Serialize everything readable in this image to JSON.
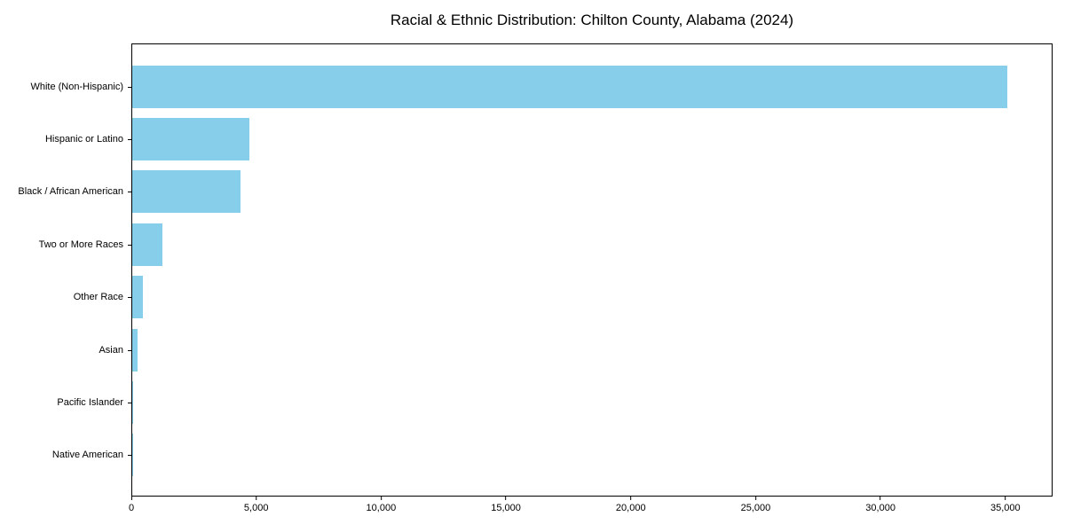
{
  "title": "Racial & Ethnic Distribution: Chilton County, Alabama (2024)",
  "colors": {
    "bar": "#87CEEB",
    "axis": "#000000",
    "background": "#FFFFFF",
    "text": "#000000"
  },
  "chart_data": {
    "type": "bar",
    "orientation": "horizontal",
    "title": "Racial & Ethnic Distribution: Chilton County, Alabama (2024)",
    "categories": [
      "White (Non-Hispanic)",
      "Hispanic or Latino",
      "Black / African American",
      "Two or More Races",
      "Other Race",
      "Asian",
      "Pacific Islander",
      "Native American"
    ],
    "values": [
      35100,
      4700,
      4330,
      1210,
      440,
      210,
      25,
      15
    ],
    "bar_color": "#87CEEB",
    "xlabel": "",
    "ylabel": "",
    "xlim": [
      0,
      36890
    ],
    "xticks": [
      0,
      5000,
      10000,
      15000,
      20000,
      25000,
      30000,
      35000
    ],
    "xtick_labels": [
      "0",
      "5,000",
      "10,000",
      "15,000",
      "20,000",
      "25,000",
      "30,000",
      "35,000"
    ],
    "grid": false,
    "legend": null
  }
}
